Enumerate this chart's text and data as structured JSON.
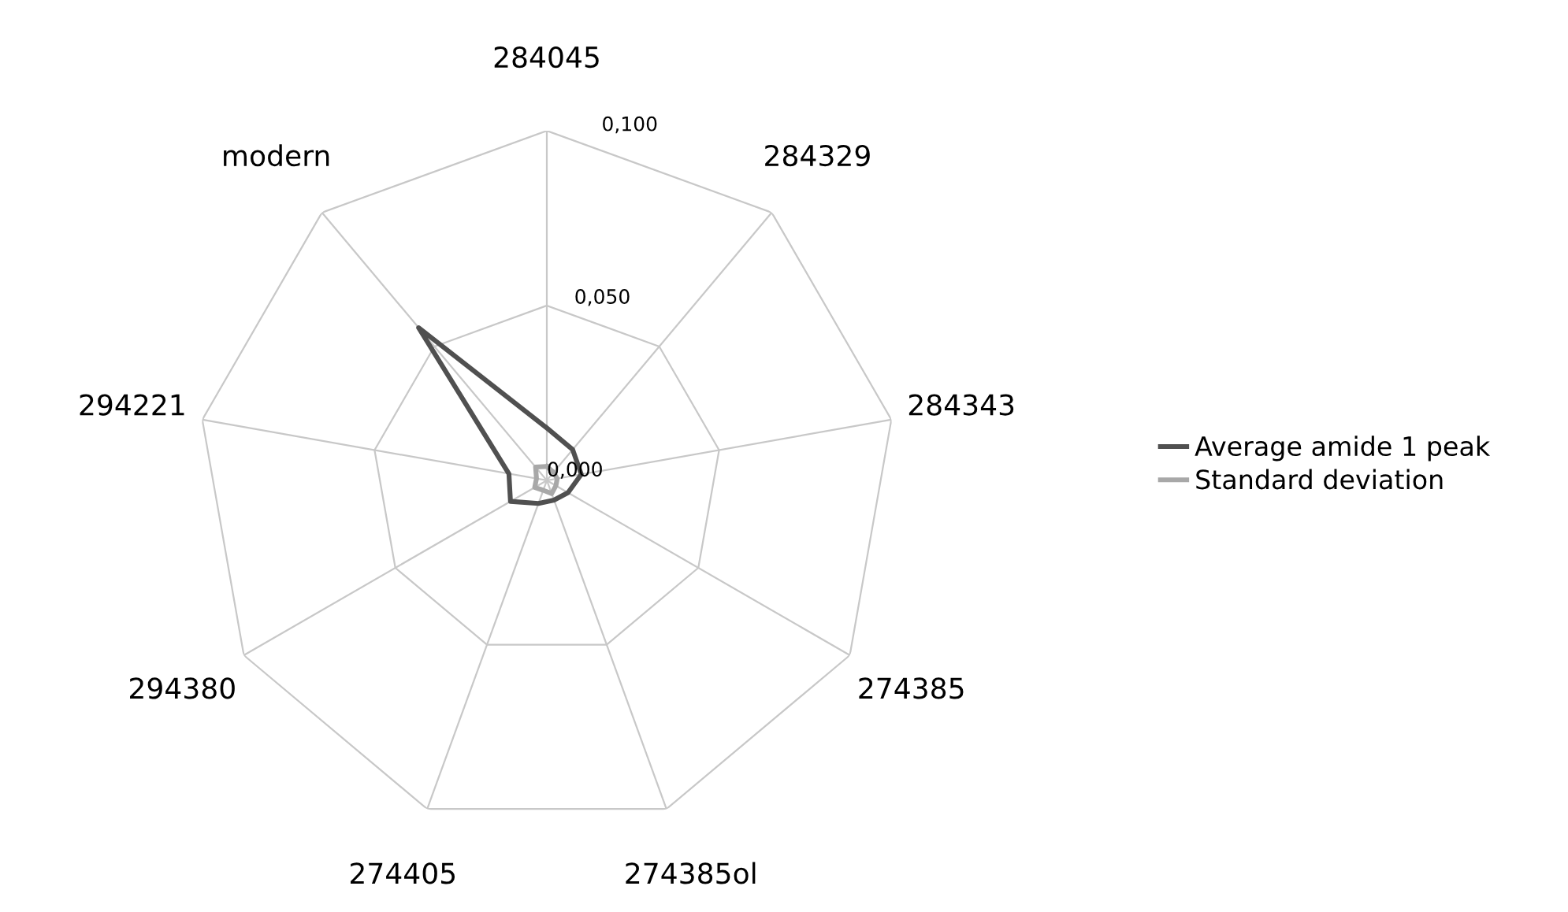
{
  "chart_data": {
    "type": "radar",
    "categories": [
      "284045",
      "284329",
      "284343",
      "274385",
      "274385ol",
      "274405",
      "294380",
      "294221",
      "modern"
    ],
    "series": [
      {
        "name": "Average amide 1 peak",
        "color": "#505050",
        "values": [
          0.015,
          0.0115,
          0.01,
          0.007,
          0.006,
          0.007,
          0.012,
          0.011,
          0.057
        ]
      },
      {
        "name": "Standard deviation",
        "color": "#a8a8a8",
        "values": [
          0.004,
          0.003,
          0.003,
          0.003,
          0.004,
          0.003,
          0.004,
          0.003,
          0.005
        ]
      }
    ],
    "ylim": [
      0,
      0.1
    ],
    "yticks": [
      {
        "value": 0,
        "label": "0,000"
      },
      {
        "value": 0.05,
        "label": "0,050"
      },
      {
        "value": 0.1,
        "label": "0,100"
      }
    ],
    "grid": true,
    "legend": "right",
    "marker": "none",
    "line_style": "solid"
  }
}
